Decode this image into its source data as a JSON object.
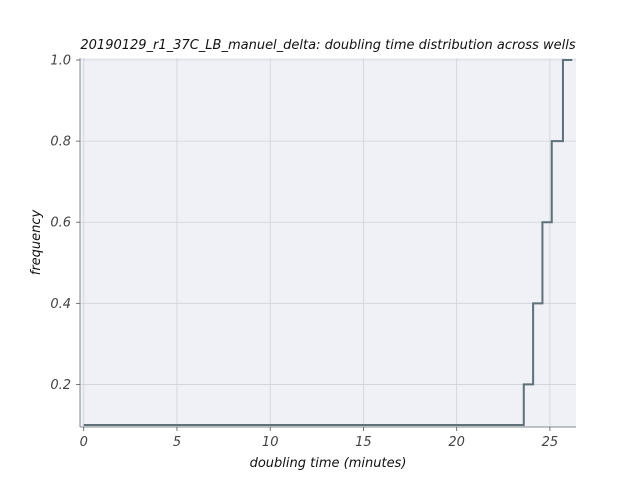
{
  "chart_data": {
    "type": "line",
    "step": true,
    "title": "20190129_r1_37C_LB_manuel_delta: doubling time distribution across wells",
    "xlabel": "doubling time (minutes)",
    "ylabel": "frequency",
    "xlim": [
      -0.2,
      26.4
    ],
    "ylim": [
      0.095,
      1.005
    ],
    "xticks": [
      0,
      5,
      10,
      15,
      20,
      25
    ],
    "yticks": [
      0.2,
      0.4,
      0.6,
      0.8,
      1.0
    ],
    "xtick_labels": [
      "0",
      "5",
      "10",
      "15",
      "20",
      "25"
    ],
    "ytick_labels": [
      "0.2",
      "0.4",
      "0.6",
      "0.8",
      "1.0"
    ],
    "grid": true,
    "background_color": "#eff1f6",
    "grid_color": "#cfd2d8",
    "line_color": "#5f7078",
    "series": [
      {
        "x": [
          0,
          23.6,
          24.1,
          24.6,
          25.1,
          25.7,
          26.2
        ],
        "y": [
          0.1,
          0.2,
          0.4,
          0.6,
          0.8,
          1.0,
          1.0
        ]
      }
    ]
  }
}
